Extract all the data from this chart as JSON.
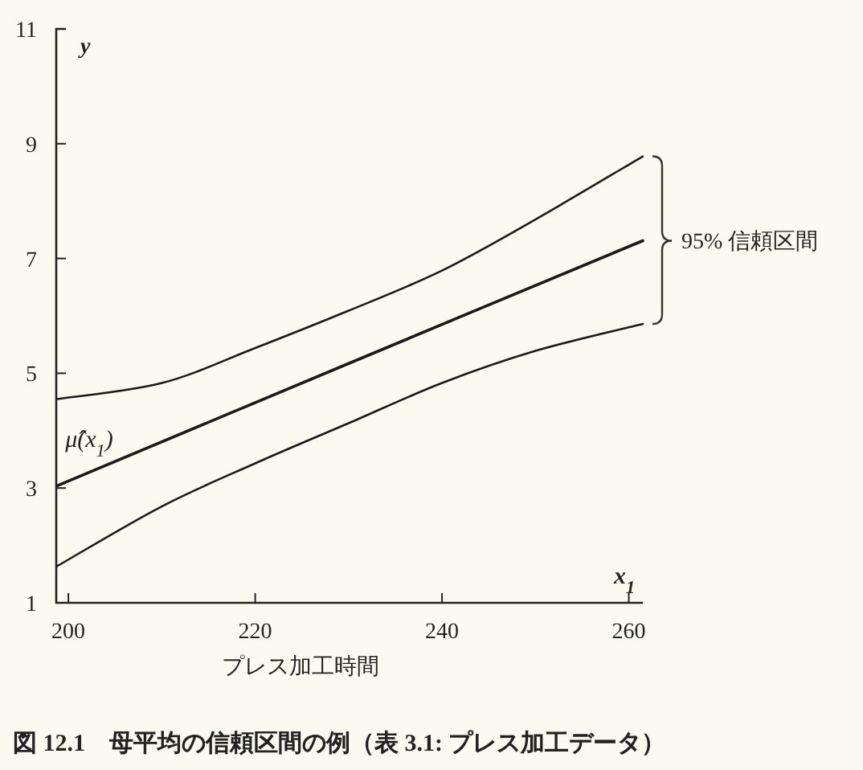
{
  "chart_data": {
    "type": "line",
    "title": "図 12.1　母平均の信頼区間の例（表 3.1: プレス加工データ）",
    "xlabel": "プレス加工時間",
    "ylabel": "y",
    "annotations": [
      {
        "text": "95% 信頼区間",
        "x": 261.5,
        "y": 7.31
      },
      "x$_{1}$"
    ],
    "xlim": [
      198.7,
      261.5
    ],
    "ylim": [
      1,
      11
    ],
    "xticks": [
      200,
      220,
      240,
      260
    ],
    "yticks": [
      1,
      3,
      5,
      7,
      9,
      11
    ],
    "grid": false,
    "marker": "none",
    "line_style": "solid",
    "series": [
      {
        "color": "#1a1a1a",
        "x": [
          198.8,
          210,
          220,
          230,
          240,
          250,
          261.5
        ],
        "values": [
          4.55,
          4.83,
          5.44,
          6.09,
          6.79,
          7.68,
          8.78
        ]
      },
      {
        "name": "μ̂(x$_{1}$)",
        "color": "#1a1a1a",
        "x": [
          198.8,
          230,
          261.5
        ],
        "values": [
          3.04,
          5.17,
          7.31
        ]
      },
      {
        "color": "#1a1a1a",
        "x": [
          198.8,
          210,
          220,
          230,
          240,
          250,
          261.5
        ],
        "values": [
          1.64,
          2.68,
          3.43,
          4.13,
          4.83,
          5.39,
          5.86
        ]
      }
    ]
  }
}
